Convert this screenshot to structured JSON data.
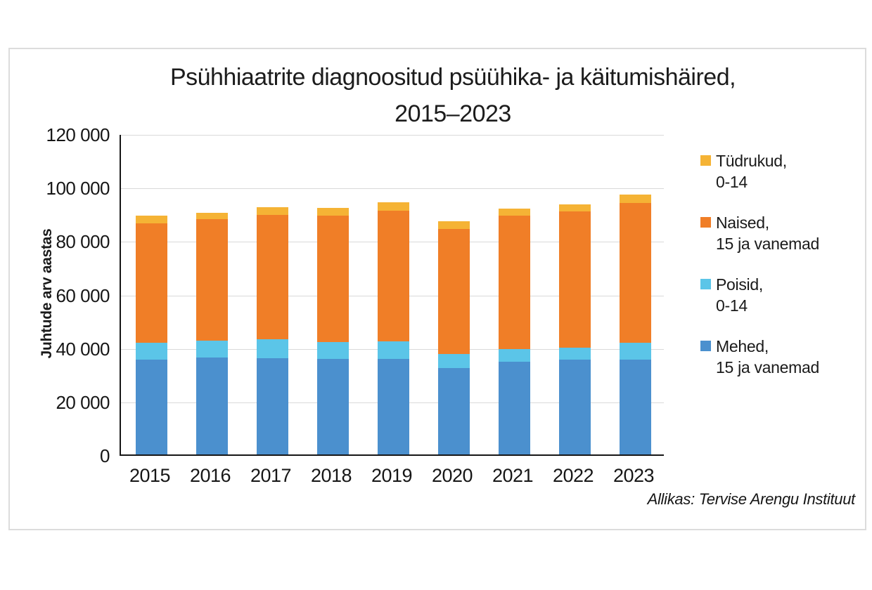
{
  "figure": {
    "title_line1": "Psühhiaatrite diagnoositud psüühika- ja käitumishäired,",
    "title_line2": "2015–2023",
    "source": "Allikas: Tervise Arengu Instituut"
  },
  "chart_data": {
    "type": "bar",
    "stacked": true,
    "title": "Psühhiaatrite diagnoositud psüühika- ja käitumishäired, 2015–2023",
    "xlabel": "",
    "ylabel": "Juhtude arv aastas",
    "ylim": [
      0,
      120000
    ],
    "ytick_step": 20000,
    "ytick_labels": [
      "0",
      "20 000",
      "40 000",
      "60 000",
      "80 000",
      "100 000",
      "120 000"
    ],
    "grid": true,
    "legend_position": "right",
    "categories": [
      "2015",
      "2016",
      "2017",
      "2018",
      "2019",
      "2020",
      "2021",
      "2022",
      "2023"
    ],
    "series": [
      {
        "key": "mehed",
        "name": "Mehed, 15 ja vanemad",
        "color": "#4B90CE",
        "values": [
          35400,
          36200,
          36000,
          35700,
          35700,
          32300,
          34700,
          35400,
          35500
        ]
      },
      {
        "key": "poisid",
        "name": "Poisid, 0-14",
        "color": "#5BC5E8",
        "values": [
          6300,
          6400,
          7000,
          6400,
          6700,
          5200,
          4800,
          4500,
          6300
        ]
      },
      {
        "key": "naised",
        "name": "Naised, 15 ja vanemad",
        "color": "#F07E27",
        "values": [
          44700,
          45300,
          46600,
          47200,
          48800,
          46800,
          49700,
          51000,
          52100
        ]
      },
      {
        "key": "tydrukud",
        "name": "Tüdrukud, 0-14",
        "color": "#F5B335",
        "values": [
          2900,
          2400,
          2900,
          3000,
          3100,
          2900,
          2600,
          2600,
          3200
        ]
      }
    ],
    "totals": [
      89300,
      90300,
      92500,
      92300,
      94300,
      87200,
      91800,
      93500,
      97100
    ],
    "legend_items": [
      {
        "key": "tydrukud",
        "line1": "Tüdrukud,",
        "line2": "0-14",
        "color": "#F5B335"
      },
      {
        "key": "naised",
        "line1": "Naised,",
        "line2": "15 ja vanemad",
        "color": "#F07E27"
      },
      {
        "key": "poisid",
        "line1": "Poisid,",
        "line2": "0-14",
        "color": "#5BC5E8"
      },
      {
        "key": "mehed",
        "line1": "Mehed,",
        "line2": "15 ja vanemad",
        "color": "#4B90CE"
      }
    ]
  }
}
